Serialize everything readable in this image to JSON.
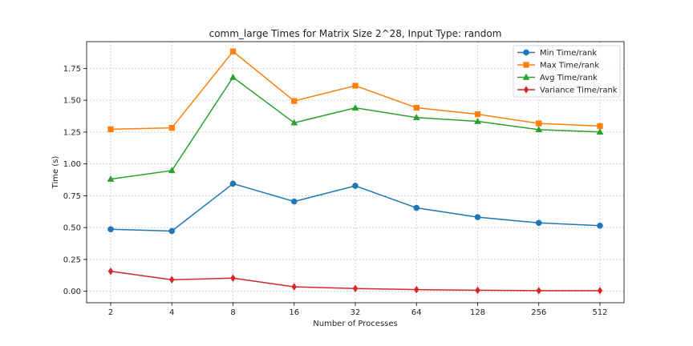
{
  "chart_data": {
    "type": "line",
    "title": "comm_large Times for Matrix Size 2^28, Input Type: random",
    "xlabel": "Number of Processes",
    "ylabel": "Time (s)",
    "categories": [
      "2",
      "4",
      "8",
      "16",
      "32",
      "64",
      "128",
      "256",
      "512"
    ],
    "ylim": [
      -0.09,
      1.96
    ],
    "yticks": [
      "0.00",
      "0.25",
      "0.50",
      "0.75",
      "1.00",
      "1.25",
      "1.50",
      "1.75"
    ],
    "grid": true,
    "legend_position": "top-right",
    "series": [
      {
        "name": "Min Time/rank",
        "color": "#1f77b4",
        "marker": "circle",
        "values": [
          0.487,
          0.473,
          0.845,
          0.705,
          0.828,
          0.655,
          0.582,
          0.537,
          0.515
        ]
      },
      {
        "name": "Max Time/rank",
        "color": "#ff7f0e",
        "marker": "square",
        "values": [
          1.272,
          1.283,
          1.883,
          1.494,
          1.614,
          1.441,
          1.39,
          1.318,
          1.297
        ]
      },
      {
        "name": "Avg Time/rank",
        "color": "#2ca02c",
        "marker": "triangle",
        "values": [
          0.881,
          0.948,
          1.68,
          1.323,
          1.44,
          1.364,
          1.334,
          1.269,
          1.251
        ]
      },
      {
        "name": "Variance Time/rank",
        "color": "#d62728",
        "marker": "diamond",
        "values": [
          0.157,
          0.091,
          0.103,
          0.035,
          0.022,
          0.013,
          0.008,
          0.005,
          0.005
        ]
      }
    ]
  }
}
